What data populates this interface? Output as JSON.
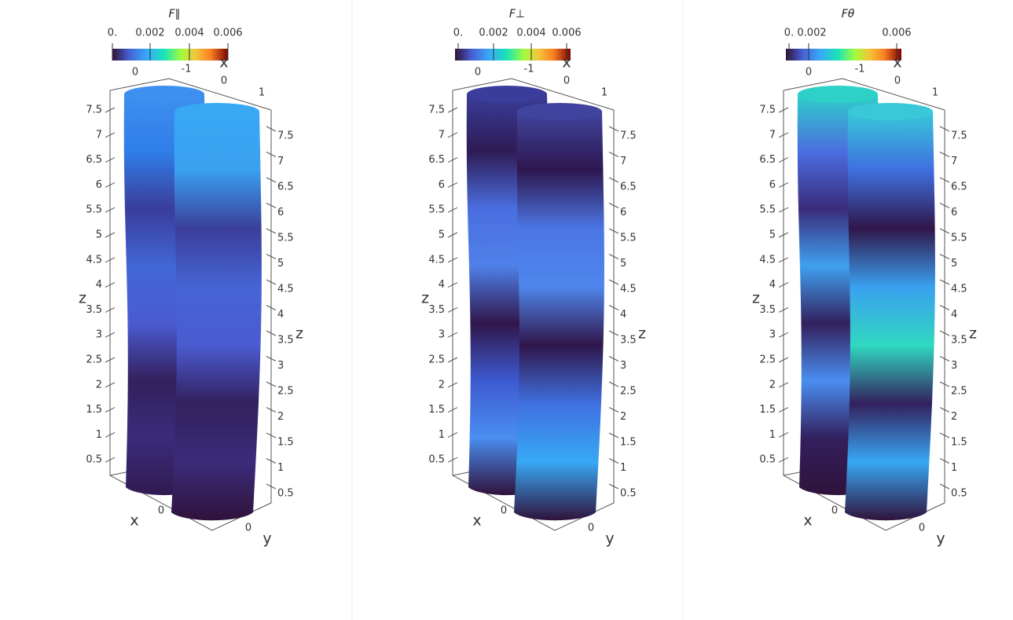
{
  "panels": [
    {
      "title": "F∥",
      "colorbar_ticks": [
        "0.",
        "0.002",
        "0.004",
        "0.006"
      ],
      "top_labels": [
        "0",
        "-1",
        "0",
        "1"
      ],
      "x_label_top": "x",
      "z_left_ticks": [
        "7.5",
        "7",
        "6.5",
        "6",
        "5.5",
        "5",
        "4.5",
        "4",
        "3.5",
        "3",
        "2.5",
        "2",
        "1.5",
        "1",
        "0.5"
      ],
      "z_right_ticks": [
        "7.5",
        "7",
        "6.5",
        "6",
        "5.5",
        "5",
        "4.5",
        "4",
        "3.5",
        "3",
        "2.5",
        "2",
        "1.5",
        "1",
        "0.5"
      ],
      "z_label_left": "z",
      "z_label_right": "z",
      "x_label": "x",
      "x_zero": "0",
      "y_zero": "0",
      "y_label": "y"
    },
    {
      "title": "F⊥",
      "colorbar_ticks": [
        "0.",
        "0.002",
        "0.004",
        "0.006"
      ],
      "top_labels": [
        "0",
        "-1",
        "0",
        "1"
      ],
      "x_label_top": "x",
      "z_left_ticks": [
        "7.5",
        "7",
        "6.5",
        "6",
        "5.5",
        "5",
        "4.5",
        "4",
        "3.5",
        "3",
        "2.5",
        "2",
        "1.5",
        "1",
        "0.5"
      ],
      "z_right_ticks": [
        "7.5",
        "7",
        "6.5",
        "6",
        "5.5",
        "5",
        "4.5",
        "4",
        "3.5",
        "3",
        "2.5",
        "2",
        "1.5",
        "1",
        "0.5"
      ],
      "z_label_left": "z",
      "z_label_right": "z",
      "x_label": "x",
      "x_zero": "0",
      "y_zero": "0",
      "y_label": "y"
    },
    {
      "title": "Fθ",
      "colorbar_ticks": [
        "0.",
        "0.002",
        "0.006"
      ],
      "top_labels": [
        "0",
        "-1",
        "0",
        "1"
      ],
      "x_label_top": "x",
      "z_left_ticks": [
        "7.5",
        "7",
        "6.5",
        "6",
        "5.5",
        "5",
        "4.5",
        "4",
        "3.5",
        "3",
        "2.5",
        "2",
        "1.5",
        "1",
        "0.5"
      ],
      "z_right_ticks": [
        "7.5",
        "7",
        "6.5",
        "6",
        "5.5",
        "5",
        "4.5",
        "4",
        "3.5",
        "3",
        "2.5",
        "2",
        "1.5",
        "1",
        "0.5"
      ],
      "z_label_left": "z",
      "z_label_right": "z",
      "x_label": "x",
      "x_zero": "0",
      "y_zero": "0",
      "y_label": "y"
    }
  ]
}
